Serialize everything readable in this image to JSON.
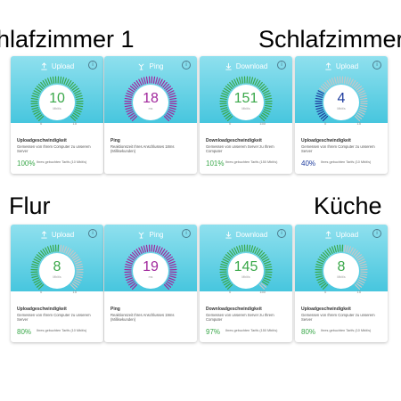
{
  "headings": [
    {
      "text": "hlafzimmer 1"
    },
    {
      "text": "Schlafzimmer"
    },
    {
      "text": "Flur"
    },
    {
      "text": "Küche"
    }
  ],
  "colors": {
    "upload": "#3aa84a",
    "ping": "#a0269c",
    "download": "#3aa84a",
    "upload_low": "#1e3c9e",
    "tick_off": "#c6c6c6"
  },
  "cards": [
    {
      "header": "Upload",
      "icon": "upload-icon",
      "value": "10",
      "unit": "Mbit/s",
      "min": "0",
      "max": "15",
      "title": "Uploadgeschwindigkeit",
      "desc": "Gemessen von Ihrem Computer zu unserem Server",
      "pct": "100%",
      "tarif": "Ihres gebuchten Tarifs (10 Mbit/s)",
      "level": 1.0,
      "color": "#3aa84a"
    },
    {
      "header": "Ping",
      "icon": "ping-icon",
      "value": "18",
      "unit": "ms",
      "min": "",
      "max": "",
      "title": "Ping",
      "desc": "Reaktionszeit Ihres Anschlusses 18ms (Millisekunden)",
      "pct": "",
      "tarif": "",
      "level": 1.0,
      "color": "#a0269c"
    },
    {
      "header": "Download",
      "icon": "download-icon",
      "value": "151",
      "unit": "Mbit/s",
      "min": "0",
      "max": "150",
      "title": "Downloadgeschwindigkeit",
      "desc": "Gemessen von unserem Server zu Ihrem Computer",
      "pct": "101%",
      "tarif": "Ihres gebuchten Tarifs (150 Mbit/s)",
      "level": 1.0,
      "color": "#3aa84a"
    },
    {
      "header": "Upload",
      "icon": "upload-icon",
      "value": "4",
      "unit": "Mbit/s",
      "min": "0",
      "max": "15",
      "title": "Uploadgeschwindigkeit",
      "desc": "Gemessen von Ihrem Computer zu unserem Server",
      "pct": "40%",
      "tarif": "Ihres gebuchten Tarifs (10 Mbit/s)",
      "level": 0.27,
      "color": "#1e3c9e"
    },
    {
      "header": "Upload",
      "icon": "upload-icon",
      "value": "8",
      "unit": "Mbit/s",
      "min": "0",
      "max": "15",
      "title": "Uploadgeschwindigkeit",
      "desc": "Gemessen von Ihrem Computer zu unserem Server",
      "pct": "80%",
      "tarif": "Ihres gebuchten Tarifs (10 Mbit/s)",
      "level": 0.53,
      "color": "#3aa84a"
    },
    {
      "header": "Ping",
      "icon": "ping-icon",
      "value": "19",
      "unit": "ms",
      "min": "",
      "max": "",
      "title": "Ping",
      "desc": "Reaktionszeit Ihres Anschlusses 19ms (Millisekunden)",
      "pct": "",
      "tarif": "",
      "level": 1.0,
      "color": "#a0269c"
    },
    {
      "header": "Download",
      "icon": "download-icon",
      "value": "145",
      "unit": "Mbit/s",
      "min": "0",
      "max": "150",
      "title": "Downloadgeschwindigkeit",
      "desc": "Gemessen von unserem Server zu Ihrem Computer",
      "pct": "97%",
      "tarif": "Ihres gebuchten Tarifs (150 Mbit/s)",
      "level": 0.97,
      "color": "#3aa84a"
    },
    {
      "header": "Upload",
      "icon": "upload-icon",
      "value": "8",
      "unit": "Mbit/s",
      "min": "0",
      "max": "15",
      "title": "Uploadgeschwindigkeit",
      "desc": "Gemessen von Ihrem Computer zu unserem Server",
      "pct": "80%",
      "tarif": "Ihres gebuchten Tarifs (10 Mbit/s)",
      "level": 0.53,
      "color": "#3aa84a"
    }
  ]
}
